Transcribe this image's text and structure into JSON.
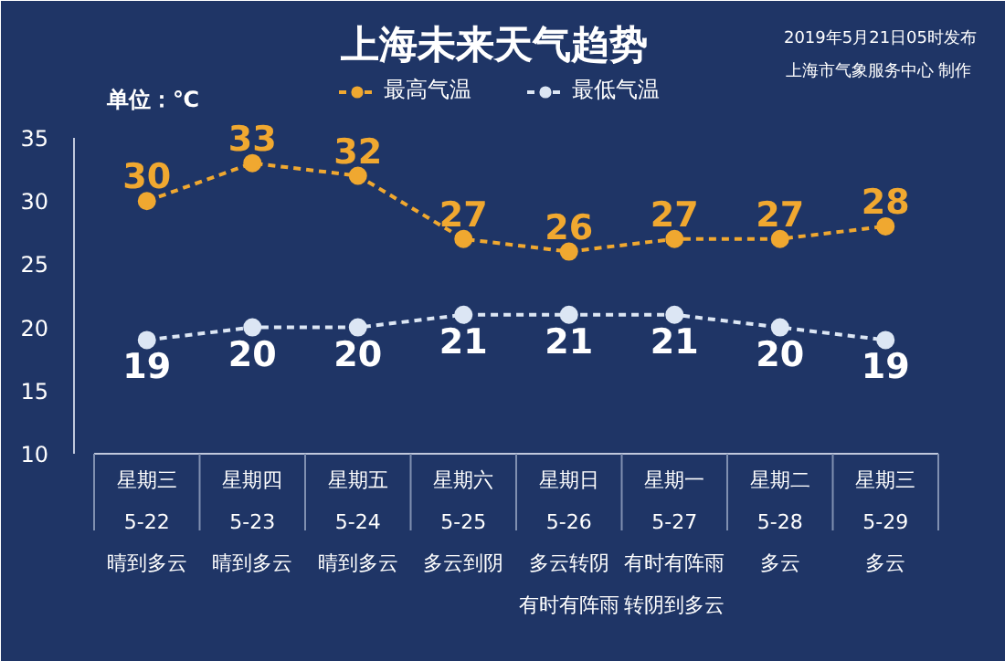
{
  "chart_data": {
    "type": "line",
    "title": "上海未来天气趋势",
    "categories": [
      "星期三\n5-22\n晴到多云",
      "星期四\n5-23\n晴到多云",
      "星期五\n5-24\n晴到多云",
      "星期六\n5-25\n多云到阴",
      "星期日\n5-26\n多云转阴有时有阵雨",
      "星期一\n5-27\n有时有阵雨转阴到多云",
      "星期二\n5-28\n多云",
      "星期三\n5-29\n多云"
    ],
    "series": [
      {
        "name": "最高气温",
        "color": "#f0a830",
        "values": [
          30,
          33,
          32,
          27,
          26,
          27,
          27,
          28
        ]
      },
      {
        "name": "最低气温",
        "color": "#dce6f4",
        "values": [
          19,
          20,
          20,
          21,
          21,
          21,
          20,
          19
        ]
      }
    ],
    "ylim": [
      10,
      35
    ],
    "yticks": [
      10,
      15,
      20,
      25,
      30,
      35
    ],
    "annotations": [
      "单位：℃",
      "2019年5月21日05时发布",
      "上海市气象服务中心  制作"
    ],
    "data_labels": true,
    "legend": "top",
    "marker": "circle",
    "line_style": "dashed",
    "grid": false
  }
}
